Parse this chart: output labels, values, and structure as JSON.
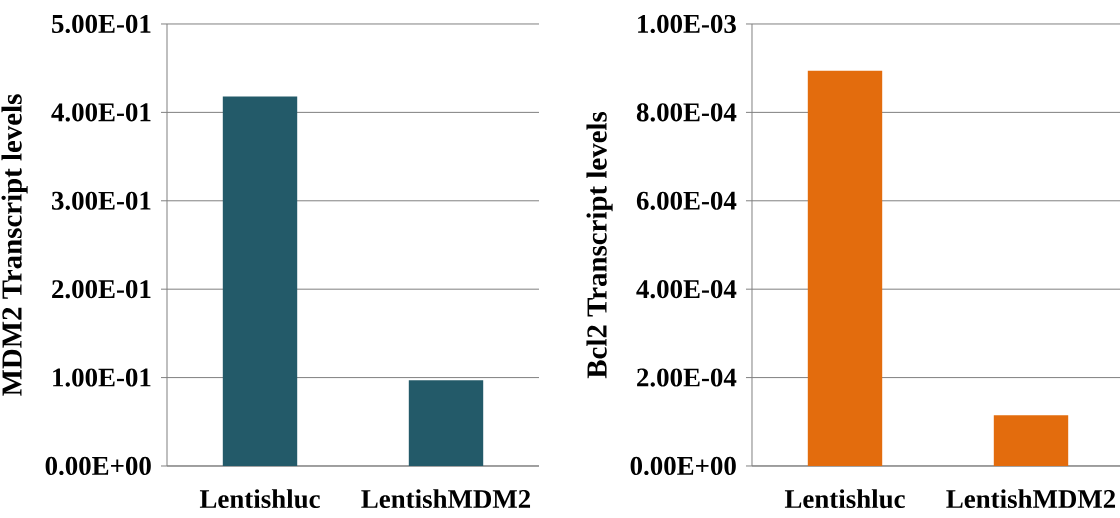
{
  "chart_data": [
    {
      "type": "bar",
      "ylabel": "MDM2 Transcript  levels",
      "categories": [
        "Lentishluc",
        "LentishMDM2"
      ],
      "values": [
        0.418,
        0.097
      ],
      "color": "#235a69",
      "ylim": [
        0,
        0.5
      ],
      "yticks": [
        {
          "value": 0,
          "label": "0.00E+00"
        },
        {
          "value": 0.1,
          "label": "1.00E-01"
        },
        {
          "value": 0.2,
          "label": "2.00E-01"
        },
        {
          "value": 0.3,
          "label": "3.00E-01"
        },
        {
          "value": 0.4,
          "label": "4.00E-01"
        },
        {
          "value": 0.5,
          "label": "5.00E-01"
        }
      ],
      "grid": "y"
    },
    {
      "type": "bar",
      "ylabel": "Bcl2 Transcript  levels",
      "categories": [
        "Lentishluc",
        "LentishMDM2"
      ],
      "values": [
        0.000894,
        0.000115
      ],
      "color": "#e36c0d",
      "ylim": [
        0,
        0.001
      ],
      "yticks": [
        {
          "value": 0,
          "label": "0.00E+00"
        },
        {
          "value": 0.0002,
          "label": "2.00E-04"
        },
        {
          "value": 0.0004,
          "label": "4.00E-04"
        },
        {
          "value": 0.0006,
          "label": "6.00E-04"
        },
        {
          "value": 0.0008,
          "label": "8.00E-04"
        },
        {
          "value": 0.001,
          "label": "1.00E-03"
        }
      ],
      "grid": "y"
    }
  ]
}
